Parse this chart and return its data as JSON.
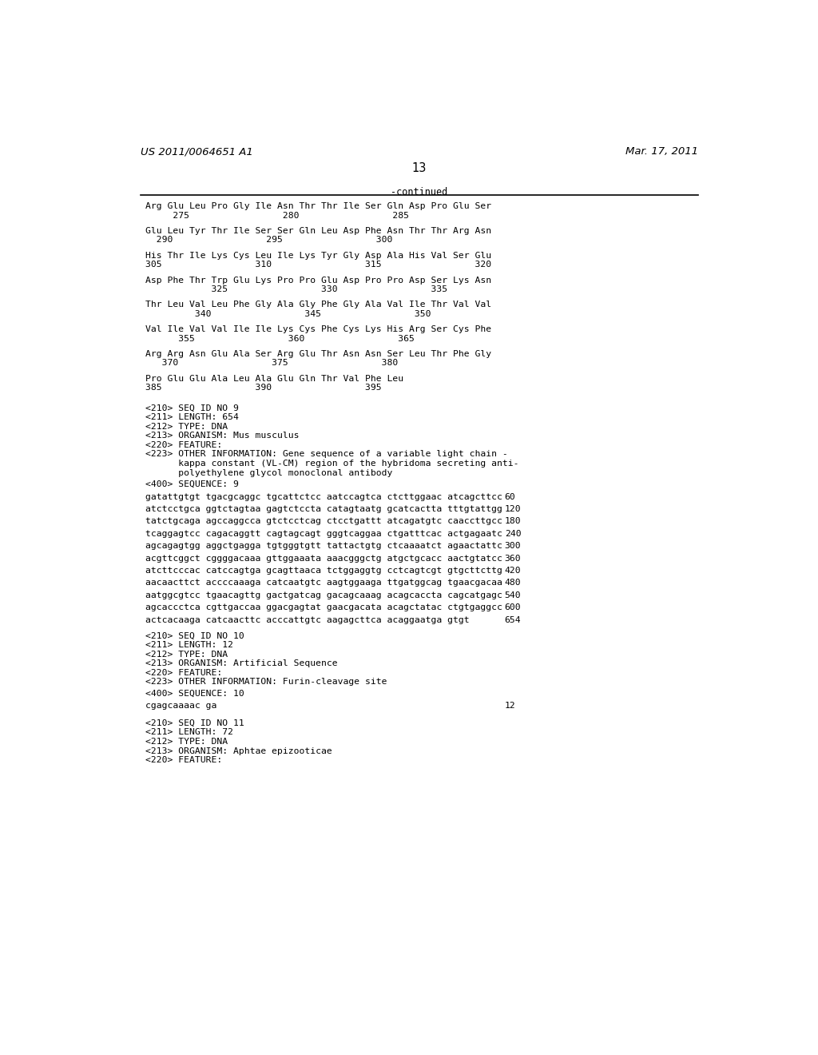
{
  "header_left": "US 2011/0064651 A1",
  "header_right": "Mar. 17, 2011",
  "page_number": "13",
  "continued_label": "-continued",
  "background_color": "#ffffff",
  "text_color": "#000000",
  "amino_sequences": [
    {
      "seq": "Arg Glu Leu Pro Gly Ile Asn Thr Thr Ile Ser Gln Asp Pro Glu Ser",
      "nums": "     275                 280                 285"
    },
    {
      "seq": "Glu Leu Tyr Thr Ile Ser Ser Gln Leu Asp Phe Asn Thr Thr Arg Asn",
      "nums": "  290                 295                 300"
    },
    {
      "seq": "His Thr Ile Lys Cys Leu Ile Lys Tyr Gly Asp Ala His Val Ser Glu",
      "nums": "305                 310                 315                 320"
    },
    {
      "seq": "Asp Phe Thr Trp Glu Lys Pro Pro Glu Asp Pro Pro Asp Ser Lys Asn",
      "nums": "            325                 330                 335"
    },
    {
      "seq": "Thr Leu Val Leu Phe Gly Ala Gly Phe Gly Ala Val Ile Thr Val Val",
      "nums": "         340                 345                 350"
    },
    {
      "seq": "Val Ile Val Val Ile Ile Lys Cys Phe Cys Lys His Arg Ser Cys Phe",
      "nums": "      355                 360                 365"
    },
    {
      "seq": "Arg Arg Asn Glu Ala Ser Arg Glu Thr Asn Asn Ser Leu Thr Phe Gly",
      "nums": "   370                 375                 380"
    },
    {
      "seq": "Pro Glu Glu Ala Leu Ala Glu Gln Thr Val Phe Leu",
      "nums": "385                 390                 395"
    }
  ],
  "seq9_meta": [
    "<210> SEQ ID NO 9",
    "<211> LENGTH: 654",
    "<212> TYPE: DNA",
    "<213> ORGANISM: Mus musculus",
    "<220> FEATURE:",
    "<223> OTHER INFORMATION: Gene sequence of a variable light chain -",
    "      kappa constant (VL-CM) region of the hybridoma secreting anti-",
    "      polyethylene glycol monoclonal antibody"
  ],
  "seq9_label": "<400> SEQUENCE: 9",
  "seq9_dna": [
    {
      "seq": "gatattgtgt tgacgcaggc tgcattctcc aatccagtca ctcttggaac atcagcttcc",
      "num": "60"
    },
    {
      "seq": "atctcctgca ggtctagtaa gagtctccta catagtaatg gcatcactta tttgtattgg",
      "num": "120"
    },
    {
      "seq": "tatctgcaga agccaggcca gtctcctcag ctcctgattt atcagatgtc caaccttgcc",
      "num": "180"
    },
    {
      "seq": "tcaggagtcc cagacaggtt cagtagcagt gggtcaggaa ctgatttcac actgagaatc",
      "num": "240"
    },
    {
      "seq": "agcagagtgg aggctgagga tgtgggtgtt tattactgtg ctcaaaatct agaactattc",
      "num": "300"
    },
    {
      "seq": "acgttcggct cggggacaaa gttggaaata aaacgggctg atgctgcacc aactgtatcc",
      "num": "360"
    },
    {
      "seq": "atcttcccac catccagtga gcagttaaca tctggaggtg cctcagtcgt gtgcttcttg",
      "num": "420"
    },
    {
      "seq": "aacaacttct accccaaaga catcaatgtc aagtggaaga ttgatggcag tgaacgacaa",
      "num": "480"
    },
    {
      "seq": "aatggcgtcc tgaacagttg gactgatcag gacagcaaag acagcaccta cagcatgagc",
      "num": "540"
    },
    {
      "seq": "agcaccctca cgttgaccaa ggacgagtat gaacgacata acagctatac ctgtgaggcc",
      "num": "600"
    },
    {
      "seq": "actcacaaga catcaacttc acccattgtc aagagcttca acaggaatga gtgt",
      "num": "654"
    }
  ],
  "seq10_meta": [
    "<210> SEQ ID NO 10",
    "<211> LENGTH: 12",
    "<212> TYPE: DNA",
    "<213> ORGANISM: Artificial Sequence",
    "<220> FEATURE:",
    "<223> OTHER INFORMATION: Furin-cleavage site"
  ],
  "seq10_label": "<400> SEQUENCE: 10",
  "seq10_dna": [
    {
      "seq": "cgagcaaaac ga",
      "num": "12"
    }
  ],
  "seq11_meta": [
    "<210> SEQ ID NO 11",
    "<211> LENGTH: 72",
    "<212> TYPE: DNA",
    "<213> ORGANISM: Aphtae epizooticae",
    "<220> FEATURE:"
  ]
}
